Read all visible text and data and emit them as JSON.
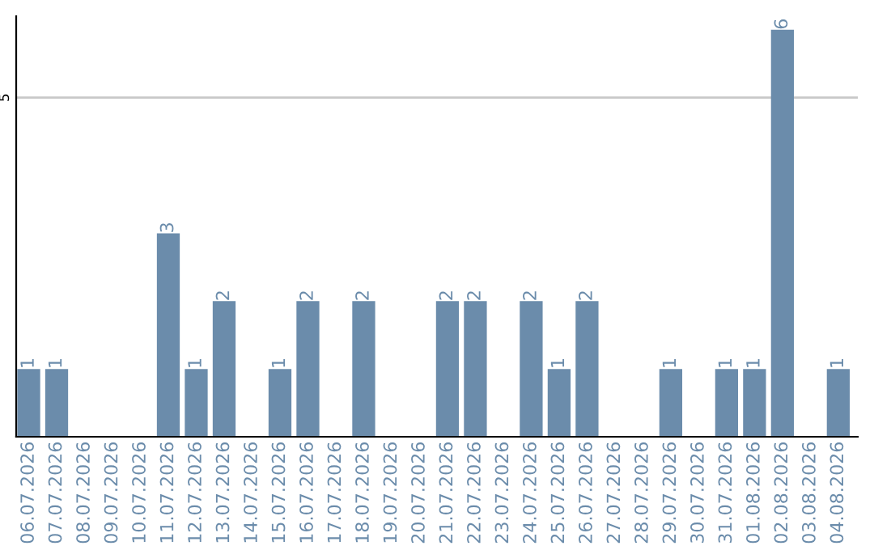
{
  "chart_data": {
    "type": "bar",
    "categories": [
      "06.07.2026",
      "07.07.2026",
      "08.07.2026",
      "09.07.2026",
      "10.07.2026",
      "11.07.2026",
      "12.07.2026",
      "13.07.2026",
      "14.07.2026",
      "15.07.2026",
      "16.07.2026",
      "17.07.2026",
      "18.07.2026",
      "19.07.2026",
      "20.07.2026",
      "21.07.2026",
      "22.07.2026",
      "23.07.2026",
      "24.07.2026",
      "25.07.2026",
      "26.07.2026",
      "27.07.2026",
      "28.07.2026",
      "29.07.2026",
      "30.07.2026",
      "31.07.2026",
      "01.08.2026",
      "02.08.2026",
      "03.08.2026",
      "04.08.2026"
    ],
    "values": [
      1,
      1,
      0,
      0,
      0,
      3,
      1,
      2,
      0,
      1,
      2,
      0,
      2,
      0,
      0,
      2,
      2,
      0,
      2,
      1,
      2,
      0,
      0,
      1,
      0,
      1,
      1,
      6,
      0,
      1
    ],
    "value_labels": [
      "1",
      "1",
      null,
      null,
      null,
      "3",
      "1",
      "2",
      null,
      "1",
      "2",
      null,
      "2",
      null,
      null,
      "2",
      "2",
      null,
      "2",
      "1",
      "2",
      null,
      null,
      "1",
      null,
      "1",
      "1",
      "6",
      null,
      "1"
    ],
    "color": "#6b8cab",
    "ylim": [
      0,
      6.2
    ],
    "yticks": [
      5
    ],
    "grid": "y",
    "legend": false
  }
}
